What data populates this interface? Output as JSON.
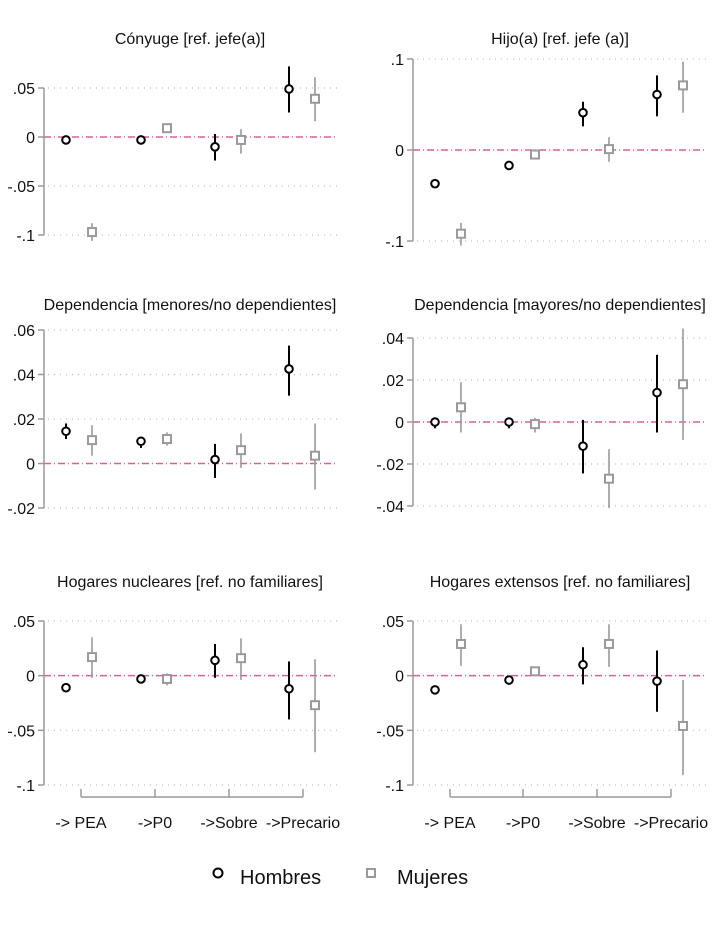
{
  "colors": {
    "hombres": "#000000",
    "mujeres": "#9a9a9a",
    "zero_line": "#d9609a",
    "grid": "#bdbdbd",
    "axis": "#9a9a9a"
  },
  "legend": {
    "items": [
      {
        "label": "Hombres",
        "marker": "circle"
      },
      {
        "label": "Mujeres",
        "marker": "square"
      }
    ],
    "placement": "bottom"
  },
  "chart_data": [
    {
      "type": "scatter",
      "title": "Cónyuge [ref.  jefe(a)]",
      "categories": [
        "-> PEA",
        "->P0",
        "->Sobre",
        "->Precario"
      ],
      "yticks": [
        ".05",
        "0",
        "-.05",
        "-.1"
      ],
      "ytick_values": [
        0.05,
        0,
        -0.05,
        -0.1
      ],
      "ylim": [
        -0.1,
        0.05
      ],
      "grid": true,
      "series": [
        {
          "name": "Hombres",
          "values": [
            -0.003,
            -0.003,
            -0.01,
            0.049
          ],
          "ci_low": [
            -0.006,
            -0.006,
            -0.024,
            0.025
          ],
          "ci_high": [
            0.0,
            0.0,
            0.003,
            0.072
          ]
        },
        {
          "name": "Mujeres",
          "values": [
            -0.097,
            0.009,
            -0.003,
            0.039
          ],
          "ci_low": [
            -0.106,
            0.006,
            -0.017,
            0.016
          ],
          "ci_high": [
            -0.088,
            0.012,
            0.008,
            0.061
          ]
        }
      ]
    },
    {
      "type": "scatter",
      "title": "Hijo(a) [ref.  jefe (a)]",
      "categories": [
        "-> PEA",
        "->P0",
        "->Sobre",
        "->Precario"
      ],
      "yticks": [
        ".1",
        "0",
        "-.1"
      ],
      "ytick_values": [
        0.1,
        0,
        -0.1
      ],
      "ylim": [
        -0.1,
        0.1
      ],
      "grid": true,
      "series": [
        {
          "name": "Hombres",
          "values": [
            -0.037,
            -0.017,
            0.041,
            0.061
          ],
          "ci_low": [
            -0.04,
            -0.019,
            0.026,
            0.037
          ],
          "ci_high": [
            -0.034,
            -0.015,
            0.053,
            0.082
          ]
        },
        {
          "name": "Mujeres",
          "values": [
            -0.092,
            -0.005,
            0.001,
            0.071
          ],
          "ci_low": [
            -0.105,
            -0.008,
            -0.013,
            0.041
          ],
          "ci_high": [
            -0.08,
            -0.002,
            0.014,
            0.097
          ]
        }
      ]
    },
    {
      "type": "scatter",
      "title": "Dependencia [menores/no dependientes]",
      "categories": [
        "-> PEA",
        "->P0",
        "->Sobre",
        "->Precario"
      ],
      "yticks": [
        ".06",
        ".04",
        ".02",
        "0",
        "-.02"
      ],
      "ytick_values": [
        0.06,
        0.04,
        0.02,
        0,
        -0.02
      ],
      "ylim": [
        -0.02,
        0.06
      ],
      "grid": true,
      "series": [
        {
          "name": "Hombres",
          "values": [
            0.0145,
            0.01,
            0.0018,
            0.0425
          ],
          "ci_low": [
            0.011,
            0.007,
            -0.0065,
            0.0305
          ],
          "ci_high": [
            0.018,
            0.012,
            0.0088,
            0.053
          ]
        },
        {
          "name": "Mujeres",
          "values": [
            0.0105,
            0.011,
            0.006,
            0.0035
          ],
          "ci_low": [
            0.0035,
            0.008,
            -0.002,
            -0.0117
          ],
          "ci_high": [
            0.0172,
            0.014,
            0.0135,
            0.018
          ]
        }
      ]
    },
    {
      "type": "scatter",
      "title": "Dependencia [mayores/no dependientes]",
      "categories": [
        "-> PEA",
        "->P0",
        "->Sobre",
        "->Precario"
      ],
      "yticks": [
        ".04",
        ".02",
        "0",
        "-.02",
        "-.04"
      ],
      "ytick_values": [
        0.04,
        0.02,
        0,
        -0.02,
        -0.04
      ],
      "ylim": [
        -0.04,
        0.04
      ],
      "grid": true,
      "series": [
        {
          "name": "Hombres",
          "values": [
            0.0,
            0.0,
            -0.0115,
            0.014
          ],
          "ci_low": [
            -0.003,
            -0.003,
            -0.0245,
            -0.005
          ],
          "ci_high": [
            0.002,
            0.002,
            0.001,
            0.032
          ]
        },
        {
          "name": "Mujeres",
          "values": [
            0.007,
            -0.001,
            -0.027,
            0.018
          ],
          "ci_low": [
            -0.005,
            -0.005,
            -0.041,
            -0.0085
          ],
          "ci_high": [
            0.019,
            0.002,
            -0.013,
            0.0445
          ]
        }
      ]
    },
    {
      "type": "scatter",
      "title": "Hogares nucleares [ref.  no familiares]",
      "categories": [
        "-> PEA",
        "->P0",
        "->Sobre",
        "->Precario"
      ],
      "yticks": [
        ".05",
        "0",
        "-.05",
        "-.1"
      ],
      "ytick_values": [
        0.05,
        0,
        -0.05,
        -0.1
      ],
      "ylim": [
        -0.1,
        0.05
      ],
      "grid": true,
      "series": [
        {
          "name": "Hombres",
          "values": [
            -0.011,
            -0.003,
            0.014,
            -0.012
          ],
          "ci_low": [
            -0.014,
            -0.006,
            -0.002,
            -0.04
          ],
          "ci_high": [
            -0.008,
            0.0,
            0.029,
            0.013
          ]
        },
        {
          "name": "Mujeres",
          "values": [
            0.017,
            -0.003,
            0.016,
            -0.027
          ],
          "ci_low": [
            -0.002,
            -0.009,
            -0.004,
            -0.07
          ],
          "ci_high": [
            0.035,
            0.002,
            0.034,
            0.015
          ]
        }
      ]
    },
    {
      "type": "scatter",
      "title": "Hogares extensos [ref.  no familiares]",
      "categories": [
        "-> PEA",
        "->P0",
        "->Sobre",
        "->Precario"
      ],
      "yticks": [
        ".05",
        "0",
        "-.05",
        "-.1"
      ],
      "ytick_values": [
        0.05,
        0,
        -0.05,
        -0.1
      ],
      "ylim": [
        -0.1,
        0.05
      ],
      "grid": true,
      "series": [
        {
          "name": "Hombres",
          "values": [
            -0.013,
            -0.004,
            0.01,
            -0.005
          ],
          "ci_low": [
            -0.016,
            -0.007,
            -0.008,
            -0.033
          ],
          "ci_high": [
            -0.01,
            0.0,
            0.026,
            0.023
          ]
        },
        {
          "name": "Mujeres",
          "values": [
            0.029,
            0.004,
            0.029,
            -0.046
          ],
          "ci_low": [
            0.009,
            0.0,
            0.008,
            -0.091
          ],
          "ci_high": [
            0.047,
            0.007,
            0.047,
            -0.004
          ]
        }
      ]
    }
  ]
}
